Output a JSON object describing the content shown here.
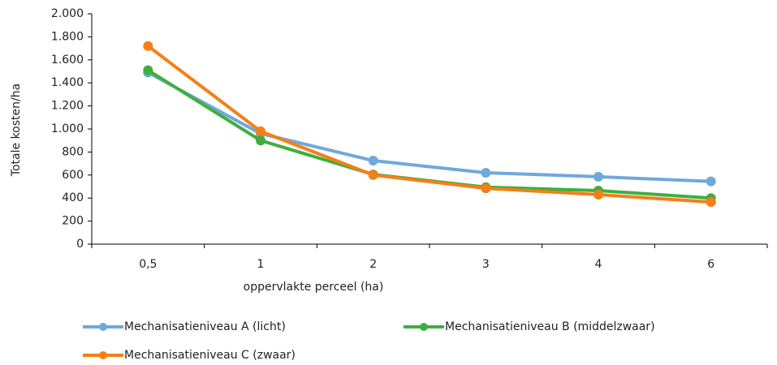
{
  "chart_data": {
    "type": "line",
    "x_label": "oppervlakte perceel (ha)",
    "y_label": "Totale kosten/ha",
    "categories": [
      "0,5",
      "1",
      "2",
      "3",
      "4",
      "6"
    ],
    "series": [
      {
        "name": "Mechanisatieniveau A (licht)",
        "color": "#6fa8dc",
        "values": [
          1490,
          960,
          725,
          620,
          585,
          545
        ]
      },
      {
        "name": "Mechanisatieniveau B (middelzwaar)",
        "color": "#3fae3f",
        "values": [
          1510,
          900,
          605,
          495,
          465,
          400
        ]
      },
      {
        "name": "Mechanisatieniveau C (zwaar)",
        "color": "#f57f17",
        "values": [
          1720,
          980,
          600,
          485,
          430,
          365
        ]
      }
    ],
    "ylim": [
      0,
      2000
    ],
    "yticks": [
      0,
      200,
      400,
      600,
      800,
      {
        "value": 1000,
        "label": "1.000"
      },
      {
        "value": 1200,
        "label": "1.200"
      },
      {
        "value": 1400,
        "label": "1.400"
      },
      {
        "value": 1600,
        "label": "1.600"
      },
      {
        "value": 1800,
        "label": "1.800"
      },
      {
        "value": 2000,
        "label": "2.000"
      }
    ],
    "grid": false
  }
}
